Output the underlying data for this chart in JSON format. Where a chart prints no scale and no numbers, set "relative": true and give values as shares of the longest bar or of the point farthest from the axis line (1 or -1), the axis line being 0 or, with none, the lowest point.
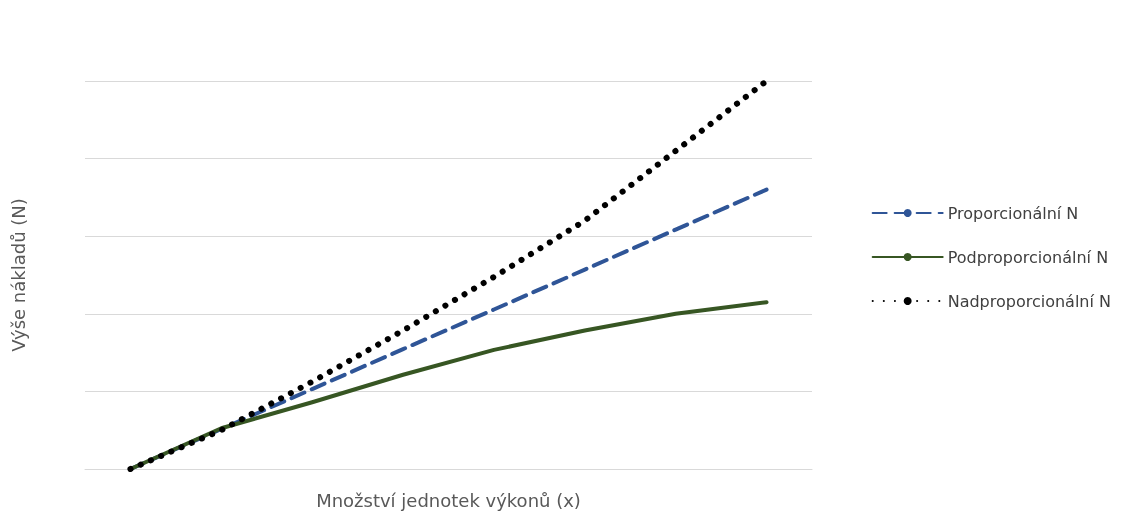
{
  "chart_data": {
    "type": "line",
    "relative": true,
    "xlabel": "Množství jednotek výkonů (x)",
    "ylabel": "Výše nákladů (N)",
    "categories": [
      null,
      null,
      null,
      null,
      null,
      null,
      null,
      null
    ],
    "series": [
      {
        "name": "Proporcionální N",
        "color": "#2f5597",
        "line_style": "dashed",
        "values": [
          0,
          0.103,
          0.206,
          0.309,
          0.411,
          0.514,
          0.617,
          0.72
        ]
      },
      {
        "name": "Podproporcionální N",
        "color": "#375623",
        "line_style": "solid",
        "values": [
          0,
          0.105,
          0.172,
          0.243,
          0.307,
          0.357,
          0.4,
          0.43
        ]
      },
      {
        "name": "Nadproporcionální N",
        "color": "#000000",
        "line_style": "dotted",
        "values": [
          0,
          0.1,
          0.225,
          0.357,
          0.495,
          0.64,
          0.82,
          1
        ]
      }
    ],
    "grid": "y",
    "legend": "right",
    "marker": "none"
  }
}
